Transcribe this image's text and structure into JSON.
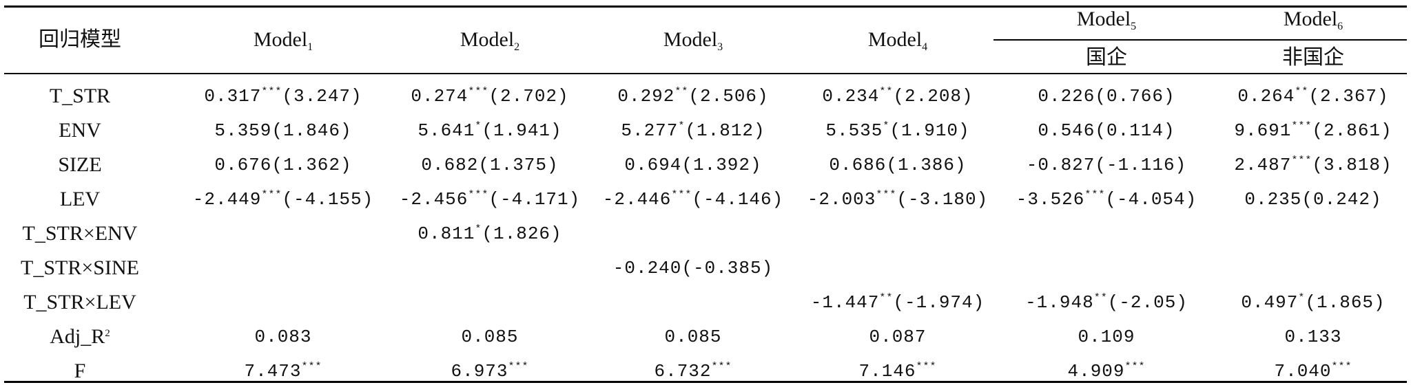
{
  "table": {
    "header": {
      "row_label": "回归模型",
      "models": [
        {
          "name": "Model",
          "sub": "1",
          "group": ""
        },
        {
          "name": "Model",
          "sub": "2",
          "group": ""
        },
        {
          "name": "Model",
          "sub": "3",
          "group": ""
        },
        {
          "name": "Model",
          "sub": "4",
          "group": ""
        },
        {
          "name": "Model",
          "sub": "5",
          "group": "国企"
        },
        {
          "name": "Model",
          "sub": "6",
          "group": "非国企"
        }
      ]
    },
    "rows": [
      {
        "label": "T_STR",
        "label_sup": "",
        "cells": [
          {
            "v": "0.317",
            "s": "***",
            "t": "(3.247)"
          },
          {
            "v": "0.274",
            "s": "***",
            "t": "(2.702)"
          },
          {
            "v": "0.292",
            "s": "**",
            "t": "(2.506)"
          },
          {
            "v": "0.234",
            "s": "**",
            "t": "(2.208)"
          },
          {
            "v": "0.226",
            "s": "",
            "t": "(0.766)"
          },
          {
            "v": "0.264",
            "s": "**",
            "t": "(2.367)"
          }
        ]
      },
      {
        "label": "ENV",
        "label_sup": "",
        "cells": [
          {
            "v": "5.359",
            "s": "",
            "t": "(1.846)"
          },
          {
            "v": "5.641",
            "s": "*",
            "t": "(1.941)"
          },
          {
            "v": "5.277",
            "s": "*",
            "t": "(1.812)"
          },
          {
            "v": "5.535",
            "s": "*",
            "t": "(1.910)"
          },
          {
            "v": "0.546",
            "s": "",
            "t": "(0.114)"
          },
          {
            "v": "9.691",
            "s": "***",
            "t": "(2.861)"
          }
        ]
      },
      {
        "label": "SIZE",
        "label_sup": "",
        "cells": [
          {
            "v": "0.676",
            "s": "",
            "t": "(1.362)"
          },
          {
            "v": "0.682",
            "s": "",
            "t": "(1.375)"
          },
          {
            "v": "0.694",
            "s": "",
            "t": "(1.392)"
          },
          {
            "v": "0.686",
            "s": "",
            "t": "(1.386)"
          },
          {
            "v": "-0.827",
            "s": "",
            "t": "(-1.116)"
          },
          {
            "v": "2.487",
            "s": "***",
            "t": "(3.818)"
          }
        ]
      },
      {
        "label": "LEV",
        "label_sup": "",
        "cells": [
          {
            "v": "-2.449",
            "s": "***",
            "t": "(-4.155)"
          },
          {
            "v": "-2.456",
            "s": "***",
            "t": "(-4.171)"
          },
          {
            "v": "-2.446",
            "s": "***",
            "t": "(-4.146)"
          },
          {
            "v": "-2.003",
            "s": "***",
            "t": "(-3.180)"
          },
          {
            "v": "-3.526",
            "s": "***",
            "t": "(-4.054)"
          },
          {
            "v": "0.235",
            "s": "",
            "t": "(0.242)"
          }
        ]
      },
      {
        "label": "T_STR×ENV",
        "label_sup": "",
        "cells": [
          {
            "v": "",
            "s": "",
            "t": ""
          },
          {
            "v": "0.811",
            "s": "*",
            "t": "(1.826)"
          },
          {
            "v": "",
            "s": "",
            "t": ""
          },
          {
            "v": "",
            "s": "",
            "t": ""
          },
          {
            "v": "",
            "s": "",
            "t": ""
          },
          {
            "v": "",
            "s": "",
            "t": ""
          }
        ]
      },
      {
        "label": "T_STR×SINE",
        "label_sup": "",
        "cells": [
          {
            "v": "",
            "s": "",
            "t": ""
          },
          {
            "v": "",
            "s": "",
            "t": ""
          },
          {
            "v": "-0.240",
            "s": "",
            "t": "(-0.385)"
          },
          {
            "v": "",
            "s": "",
            "t": ""
          },
          {
            "v": "",
            "s": "",
            "t": ""
          },
          {
            "v": "",
            "s": "",
            "t": ""
          }
        ]
      },
      {
        "label": "T_STR×LEV",
        "label_sup": "",
        "cells": [
          {
            "v": "",
            "s": "",
            "t": ""
          },
          {
            "v": "",
            "s": "",
            "t": ""
          },
          {
            "v": "",
            "s": "",
            "t": ""
          },
          {
            "v": "-1.447",
            "s": "**",
            "t": "(-1.974)"
          },
          {
            "v": "-1.948",
            "s": "**",
            "t": "(-2.05)"
          },
          {
            "v": "0.497",
            "s": "*",
            "t": "(1.865)"
          }
        ]
      },
      {
        "label": "Adj_R",
        "label_sup": "2",
        "cells": [
          {
            "v": "0.083",
            "s": "",
            "t": ""
          },
          {
            "v": "0.085",
            "s": "",
            "t": ""
          },
          {
            "v": "0.085",
            "s": "",
            "t": ""
          },
          {
            "v": "0.087",
            "s": "",
            "t": ""
          },
          {
            "v": "0.109",
            "s": "",
            "t": ""
          },
          {
            "v": "0.133",
            "s": "",
            "t": ""
          }
        ]
      },
      {
        "label": "F",
        "label_sup": "",
        "cells": [
          {
            "v": "7.473",
            "s": "***",
            "t": ""
          },
          {
            "v": "6.973",
            "s": "***",
            "t": ""
          },
          {
            "v": "6.732",
            "s": "***",
            "t": ""
          },
          {
            "v": "7.146",
            "s": "***",
            "t": ""
          },
          {
            "v": "4.909",
            "s": "***",
            "t": ""
          },
          {
            "v": "7.040",
            "s": "***",
            "t": ""
          }
        ]
      }
    ]
  }
}
